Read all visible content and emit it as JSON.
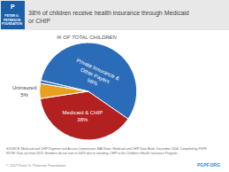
{
  "chart_data": {
    "type": "pie",
    "title": "38% of children receive health insurance through Medicaid\nor CHIP",
    "subtitle": "% OF TOTAL CHILDREN",
    "categories": [
      "Private Insurance &\nOther Payers",
      "Medicaid & CHIP",
      "Uninsured",
      null
    ],
    "values": [
      56,
      38,
      5,
      1
    ],
    "value_labels": [
      "56%",
      "38%",
      "5%",
      null
    ],
    "colors": [
      "#2b6cb8",
      "#b32020",
      "#e8a020",
      "#2b6cb8"
    ],
    "data_labels": true,
    "annotations": [
      "P",
      "PETER G.\nPETERSON\nFOUNDATION",
      "SOURCE: Medicaid and CHIP Payment and Access Commission, MACStats: Medicaid and CHIP Data Book, December 2016. Compiled by PGPF.\nNOTE: Data are from 2015. Numbers do not sum to 100% due to rounding. CHIP is the Children's Health Insurance Program.",
      "© 2017 Peter G. Peterson Foundation",
      "PGPF.ORG"
    ]
  }
}
